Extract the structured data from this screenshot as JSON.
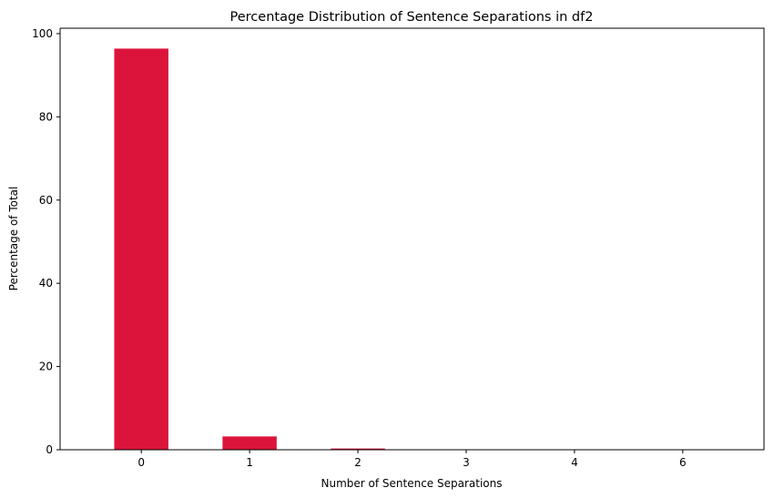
{
  "chart_data": {
    "type": "bar",
    "title": "Percentage Distribution of Sentence Separations in df2",
    "xlabel": "Number of Sentence Separations",
    "ylabel": "Percentage of Total",
    "categories": [
      "0",
      "1",
      "2",
      "3",
      "4",
      "6"
    ],
    "values": [
      96.4,
      3.2,
      0.3,
      0.05,
      0.02,
      0.01
    ],
    "yticks": [
      "0",
      "20",
      "40",
      "60",
      "80",
      "100"
    ],
    "ylim": [
      0,
      101.3
    ],
    "grid": false,
    "legend": "none",
    "bar_color": "#dc143c"
  }
}
